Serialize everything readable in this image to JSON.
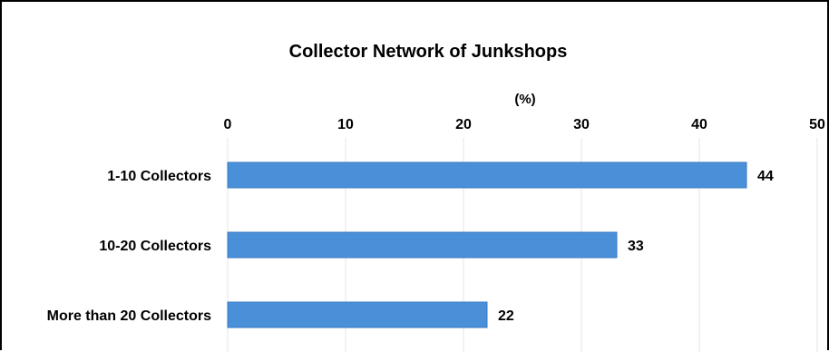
{
  "chart_data": {
    "type": "bar",
    "orientation": "horizontal",
    "title": "Collector Network of Junkshops",
    "xlabel": "(%)",
    "xlim": [
      0,
      50
    ],
    "xticks": [
      0,
      10,
      20,
      30,
      40,
      50
    ],
    "categories": [
      "1-10 Collectors",
      "10-20 Collectors",
      "More than 20 Collectors"
    ],
    "values": [
      44,
      33,
      22
    ],
    "data_labels": [
      "44",
      "33",
      "22"
    ],
    "bar_color": "#4a90d9",
    "grid": true,
    "legend": "none",
    "axis_position": "top"
  }
}
